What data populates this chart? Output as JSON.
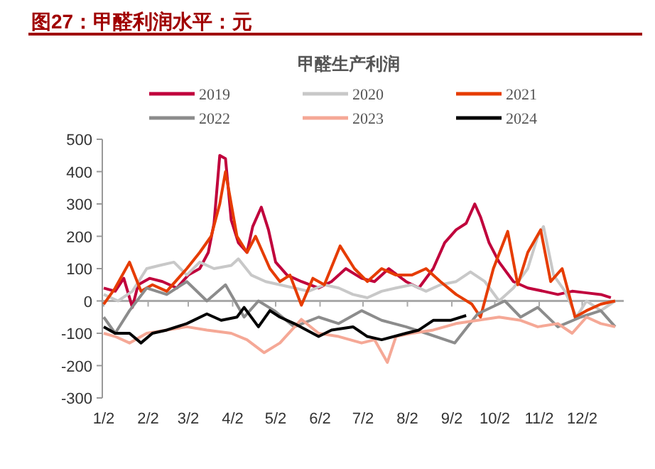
{
  "chart_data": {
    "type": "line",
    "title": "图27：甲醛利润水平：元",
    "subtitle": "甲醛生产利润",
    "xlim": [
      "--01-01",
      "--12-31"
    ],
    "xticks": [
      {
        "value": "--01-02",
        "label": "1/2"
      },
      {
        "value": "--02-02",
        "label": "2/2"
      },
      {
        "value": "--03-02",
        "label": "3/2"
      },
      {
        "value": "--04-02",
        "label": "4/2"
      },
      {
        "value": "--05-02",
        "label": "5/2"
      },
      {
        "value": "--06-02",
        "label": "6/2"
      },
      {
        "value": "--07-02",
        "label": "7/2"
      },
      {
        "value": "--08-02",
        "label": "8/2"
      },
      {
        "value": "--09-02",
        "label": "9/2"
      },
      {
        "value": "--10-02",
        "label": "10/2"
      },
      {
        "value": "--11-02",
        "label": "11/2"
      },
      {
        "value": "--12-02",
        "label": "12/2"
      }
    ],
    "ylim": [
      -300,
      500
    ],
    "yticks": [
      -300,
      -200,
      -100,
      0,
      100,
      200,
      300,
      400,
      500
    ],
    "legend": "top",
    "line_style": "solid",
    "marker": "none",
    "series": [
      {
        "name": "2019",
        "color": "#c0003c",
        "x": [
          "--01-02",
          "--01-10",
          "--01-16",
          "--01-22",
          "--01-26",
          "--02-03",
          "--02-12",
          "--02-22",
          "--03-02",
          "--03-10",
          "--03-16",
          "--03-20",
          "--03-24",
          "--03-28",
          "--04-01",
          "--04-06",
          "--04-12",
          "--04-16",
          "--04-22",
          "--04-27",
          "--05-02",
          "--05-10",
          "--05-20",
          "--06-01",
          "--06-10",
          "--06-20",
          "--07-01",
          "--07-10",
          "--07-20",
          "--08-01",
          "--08-10",
          "--08-20",
          "--08-28",
          "--09-05",
          "--09-12",
          "--09-18",
          "--09-22",
          "--09-28",
          "--10-05",
          "--10-15",
          "--10-25",
          "--11-05",
          "--11-15",
          "--11-25",
          "--12-05",
          "--12-15",
          "--12-22"
        ],
        "values": [
          40,
          30,
          70,
          -20,
          50,
          70,
          60,
          40,
          80,
          100,
          150,
          240,
          450,
          440,
          250,
          180,
          150,
          230,
          290,
          220,
          120,
          80,
          60,
          40,
          60,
          100,
          70,
          60,
          100,
          60,
          40,
          100,
          180,
          220,
          240,
          300,
          260,
          180,
          120,
          60,
          40,
          30,
          20,
          30,
          25,
          20,
          10
        ]
      },
      {
        "name": "2020",
        "color": "#c8c8c8",
        "x": [
          "--01-02",
          "--01-12",
          "--01-22",
          "--02-01",
          "--02-10",
          "--02-20",
          "--03-01",
          "--03-10",
          "--03-20",
          "--04-01",
          "--04-06",
          "--04-15",
          "--04-25",
          "--05-05",
          "--05-15",
          "--05-25",
          "--06-05",
          "--06-15",
          "--06-25",
          "--07-05",
          "--07-15",
          "--07-25",
          "--08-05",
          "--08-15",
          "--08-25",
          "--09-05",
          "--09-15",
          "--09-25",
          "--10-05",
          "--10-15",
          "--10-25",
          "--11-01",
          "--11-05",
          "--11-12",
          "--11-20",
          "--11-28",
          "--12-05",
          "--12-15",
          "--12-25"
        ],
        "values": [
          20,
          0,
          30,
          100,
          110,
          120,
          80,
          120,
          100,
          110,
          130,
          80,
          60,
          50,
          40,
          30,
          50,
          40,
          20,
          10,
          30,
          40,
          50,
          30,
          50,
          60,
          90,
          60,
          0,
          40,
          100,
          200,
          230,
          80,
          30,
          -50,
          0,
          -30,
          0
        ]
      },
      {
        "name": "2021",
        "color": "#e63c00",
        "x": [
          "--01-02",
          "--01-10",
          "--01-20",
          "--01-28",
          "--02-05",
          "--02-15",
          "--03-01",
          "--03-10",
          "--03-18",
          "--03-24",
          "--03-28",
          "--04-05",
          "--04-12",
          "--04-18",
          "--04-28",
          "--05-05",
          "--05-12",
          "--05-20",
          "--05-28",
          "--06-05",
          "--06-16",
          "--06-26",
          "--07-05",
          "--07-15",
          "--07-25",
          "--08-05",
          "--08-15",
          "--08-25",
          "--09-05",
          "--09-16",
          "--09-22",
          "--10-01",
          "--10-11",
          "--10-18",
          "--10-25",
          "--11-03",
          "--11-10",
          "--11-18",
          "--11-27",
          "--12-05",
          "--12-15",
          "--12-25"
        ],
        "values": [
          -10,
          40,
          120,
          30,
          50,
          30,
          100,
          150,
          200,
          300,
          400,
          200,
          150,
          200,
          100,
          60,
          80,
          -13,
          70,
          50,
          170,
          100,
          60,
          100,
          80,
          80,
          100,
          60,
          20,
          -10,
          -50,
          100,
          215,
          50,
          150,
          220,
          60,
          100,
          -50,
          -30,
          -10,
          0
        ]
      },
      {
        "name": "2022",
        "color": "#8c8c8c",
        "x": [
          "--01-02",
          "--01-10",
          "--01-20",
          "--02-01",
          "--02-15",
          "--03-01",
          "--03-15",
          "--03-28",
          "--04-10",
          "--04-20",
          "--05-01",
          "--05-15",
          "--06-01",
          "--06-15",
          "--07-01",
          "--07-15",
          "--08-01",
          "--08-15",
          "--09-04",
          "--09-20",
          "--10-09",
          "--10-20",
          "--11-01",
          "--11-15",
          "--12-01",
          "--12-15",
          "--12-25"
        ],
        "values": [
          -50,
          -100,
          -30,
          40,
          20,
          60,
          0,
          50,
          -50,
          0,
          -30,
          -80,
          -50,
          -70,
          -30,
          -60,
          -80,
          -100,
          -130,
          -40,
          0,
          -50,
          -20,
          -80,
          -50,
          -30,
          -80
        ]
      },
      {
        "name": "2023",
        "color": "#f5a896",
        "x": [
          "--01-02",
          "--01-10",
          "--01-20",
          "--02-01",
          "--02-15",
          "--03-01",
          "--03-15",
          "--04-01",
          "--04-12",
          "--04-24",
          "--05-05",
          "--05-20",
          "--06-01",
          "--06-15",
          "--07-01",
          "--07-10",
          "--07-19",
          "--07-25",
          "--08-05",
          "--08-20",
          "--09-05",
          "--09-20",
          "--10-05",
          "--10-20",
          "--11-01",
          "--11-15",
          "--11-25",
          "--12-05",
          "--12-15",
          "--12-25"
        ],
        "values": [
          -100,
          -110,
          -130,
          -100,
          -90,
          -80,
          -90,
          -100,
          -120,
          -160,
          -130,
          -57,
          -100,
          -110,
          -130,
          -120,
          -190,
          -110,
          -100,
          -90,
          -70,
          -60,
          -50,
          -60,
          -80,
          -70,
          -100,
          -50,
          -70,
          -80
        ]
      },
      {
        "name": "2024",
        "color": "#000000",
        "x": [
          "--01-02",
          "--01-10",
          "--01-20",
          "--01-28",
          "--02-05",
          "--02-15",
          "--03-01",
          "--03-15",
          "--03-25",
          "--04-05",
          "--04-10",
          "--04-20",
          "--04-28",
          "--05-05",
          "--05-15",
          "--06-01",
          "--06-10",
          "--06-25",
          "--07-05",
          "--07-15",
          "--08-01",
          "--08-10",
          "--08-20",
          "--09-01",
          "--09-12"
        ],
        "values": [
          -80,
          -100,
          -100,
          -130,
          -100,
          -90,
          -70,
          -40,
          -60,
          -50,
          -20,
          -80,
          -30,
          -50,
          -70,
          -110,
          -90,
          -80,
          -110,
          -120,
          -100,
          -90,
          -60,
          -60,
          -45
        ]
      }
    ]
  }
}
